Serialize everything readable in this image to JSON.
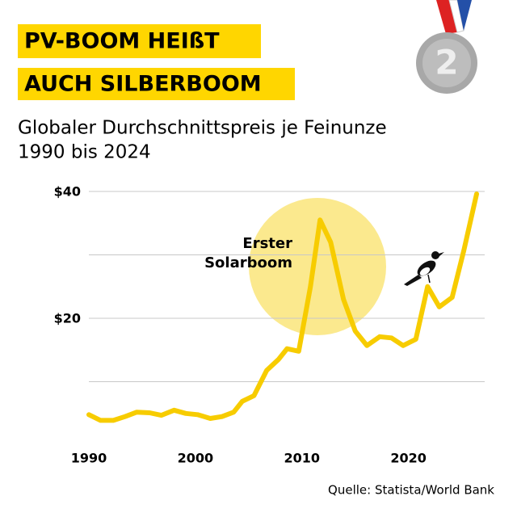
{
  "header": {
    "title_lines": [
      "PV-BOOM HEIßT",
      "AUCH SILBERBOOM"
    ],
    "badge": "2"
  },
  "chart_data": {
    "type": "line",
    "title": "Globaler Durchschnittspreis je Feinunze",
    "subtitle": "1990 bis 2024",
    "annotation": [
      "Erster",
      "Solarboom"
    ],
    "source": "Quelle: Statista/World Bank",
    "x": [
      1990,
      1991.1,
      1992.3,
      1993.4,
      1994.5,
      1995.7,
      1996.8,
      1998,
      1999.1,
      2000.2,
      2001.4,
      2002.5,
      2003.6,
      2004.4,
      2005.5,
      2006.7,
      2007.8,
      2008.6,
      2009.7,
      2010.8,
      2011.7,
      2012.7,
      2013.9,
      2015,
      2016.1,
      2017.3,
      2018.4,
      2019.5,
      2020.7,
      2021.8,
      2022.9,
      2024.1,
      2025.2,
      2026.4
    ],
    "series": [
      {
        "color": "#f7cc00",
        "values": [
          4.8,
          3.9,
          3.9,
          4.5,
          5.2,
          5.1,
          4.7,
          5.5,
          5.0,
          4.8,
          4.2,
          4.5,
          5.2,
          6.9,
          7.8,
          11.8,
          13.5,
          15.2,
          14.8,
          25,
          35.5,
          32,
          23,
          18,
          15.7,
          17.1,
          16.9,
          15.7,
          16.7,
          25,
          21.8,
          23.3,
          30.7,
          39.6
        ]
      }
    ],
    "xlim": [
      1990,
      2026.4
    ],
    "xticks": [
      1990,
      2000,
      2010,
      2020
    ],
    "ylim": [
      0,
      40
    ],
    "yticks": [
      {
        "value": 10,
        "label": null
      },
      {
        "value": 20,
        "label": "$20"
      },
      {
        "value": 30,
        "label": null
      },
      {
        "value": 40,
        "label": "$40"
      }
    ],
    "grid": true
  }
}
